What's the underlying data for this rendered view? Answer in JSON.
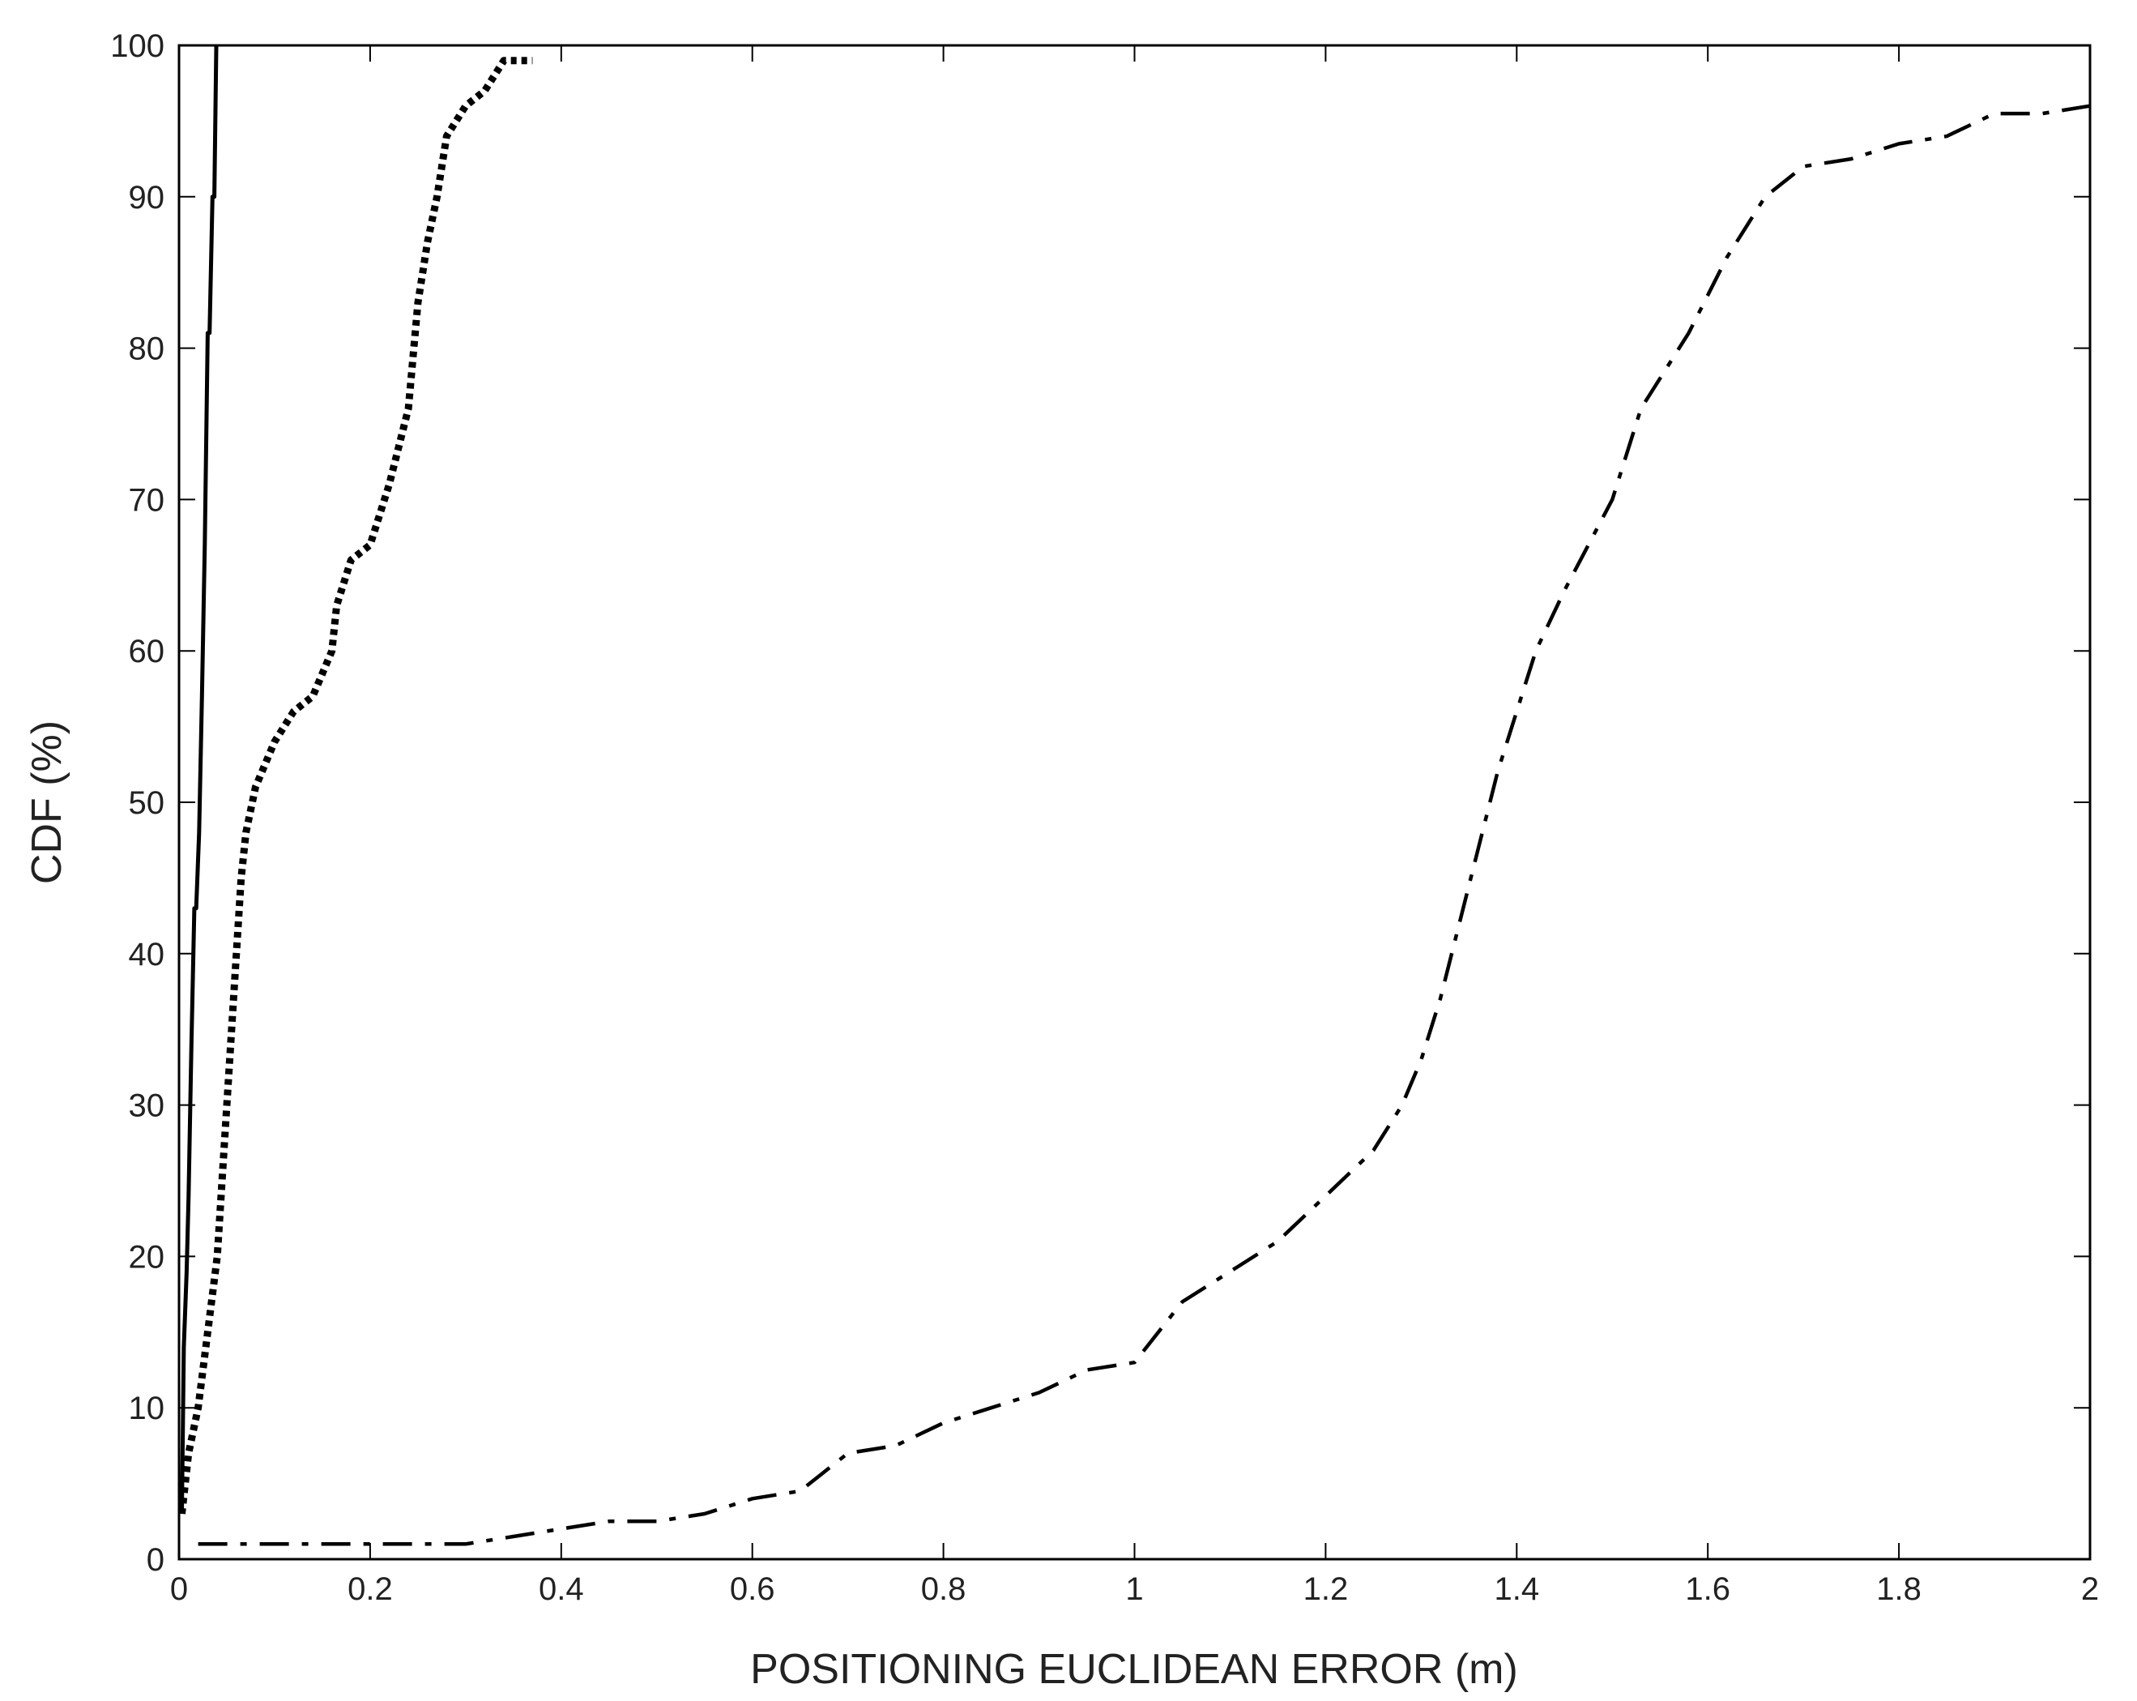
{
  "chart_data": {
    "type": "line",
    "title": "",
    "xlabel": "POSITIONING EUCLIDEAN ERROR (m)",
    "ylabel": "CDF (%)",
    "xlim": [
      0,
      2
    ],
    "ylim": [
      0,
      100
    ],
    "x_ticks": [
      "0",
      "0.2",
      "0.4",
      "0.6",
      "0.8",
      "1",
      "1.2",
      "1.4",
      "1.6",
      "1.8",
      "2"
    ],
    "y_ticks": [
      "0",
      "10",
      "20",
      "30",
      "40",
      "50",
      "60",
      "70",
      "80",
      "90",
      "100"
    ],
    "grid": false,
    "legend": "none",
    "series": [
      {
        "style": "solid",
        "color": "#000000",
        "x": [
          0.003,
          0.005,
          0.008,
          0.01,
          0.013,
          0.016,
          0.018,
          0.021,
          0.024,
          0.027,
          0.03,
          0.032,
          0.035,
          0.037,
          0.039
        ],
        "y": [
          3,
          14,
          19,
          24,
          34,
          43,
          43,
          48,
          57,
          67,
          81,
          81,
          90,
          90,
          100
        ]
      },
      {
        "style": "dotted",
        "color": "#000000",
        "x": [
          0.003,
          0.01,
          0.02,
          0.03,
          0.04,
          0.045,
          0.05,
          0.055,
          0.06,
          0.065,
          0.07,
          0.08,
          0.1,
          0.12,
          0.14,
          0.16,
          0.165,
          0.18,
          0.2,
          0.22,
          0.24,
          0.25,
          0.26,
          0.27,
          0.28,
          0.3,
          0.32,
          0.34,
          0.36,
          0.37
        ],
        "y": [
          3,
          7,
          10,
          15,
          20,
          25,
          30,
          35,
          40,
          45,
          48,
          51,
          54,
          56,
          57,
          60,
          63,
          66,
          67,
          71,
          76,
          83,
          87,
          90,
          94,
          96,
          97,
          99,
          99,
          99
        ]
      },
      {
        "style": "dash-dot",
        "color": "#000000",
        "x": [
          0.02,
          0.1,
          0.2,
          0.3,
          0.35,
          0.4,
          0.45,
          0.5,
          0.55,
          0.6,
          0.65,
          0.7,
          0.75,
          0.8,
          0.85,
          0.9,
          0.95,
          1.0,
          1.05,
          1.1,
          1.15,
          1.2,
          1.25,
          1.28,
          1.3,
          1.32,
          1.34,
          1.36,
          1.38,
          1.4,
          1.42,
          1.45,
          1.5,
          1.53,
          1.58,
          1.62,
          1.66,
          1.7,
          1.75,
          1.8,
          1.85,
          1.9,
          1.95,
          2.0
        ],
        "y": [
          1,
          1,
          1,
          1,
          1.5,
          2,
          2.5,
          2.5,
          3,
          4,
          4.5,
          7,
          7.5,
          9,
          10,
          11,
          12.5,
          13,
          17,
          19,
          21,
          24,
          27,
          30,
          33,
          37,
          42,
          47,
          52,
          56,
          60,
          64,
          70,
          76,
          81,
          86,
          90,
          92,
          92.5,
          93.5,
          94,
          95.5,
          95.5,
          96
        ]
      }
    ]
  }
}
